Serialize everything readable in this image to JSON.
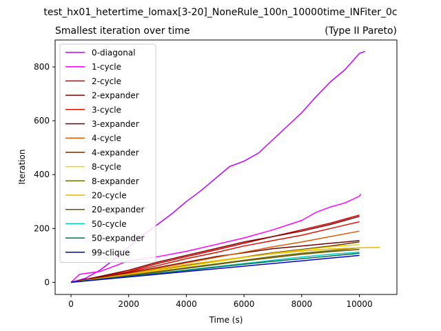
{
  "figure": {
    "suptitle": "test_hx01_hetertime_lomax[3-20]_NoneRule_100n_10000time_INFiter_0c"
  },
  "chart_data": {
    "type": "line",
    "title_left": "Smallest iteration over time",
    "title_right": "(Type II Pareto)",
    "xlabel": "Time (s)",
    "ylabel": "Iteration",
    "xlim": [
      -550,
      11300
    ],
    "ylim": [
      -45,
      900
    ],
    "xticks": [
      0,
      2000,
      4000,
      6000,
      8000,
      10000
    ],
    "yticks": [
      0,
      200,
      400,
      600,
      800
    ],
    "grid": false,
    "legend_position": "upper-left",
    "series": [
      {
        "name": "0-diagonal",
        "color": "#bf00ff",
        "points": [
          [
            0,
            0
          ],
          [
            500,
            15
          ],
          [
            1000,
            45
          ],
          [
            1500,
            85
          ],
          [
            2000,
            130
          ],
          [
            2500,
            175
          ],
          [
            3000,
            215
          ],
          [
            3500,
            255
          ],
          [
            4000,
            300
          ],
          [
            4500,
            340
          ],
          [
            5000,
            385
          ],
          [
            5500,
            430
          ],
          [
            6000,
            450
          ],
          [
            6500,
            480
          ],
          [
            7000,
            530
          ],
          [
            7500,
            580
          ],
          [
            8000,
            630
          ],
          [
            8500,
            690
          ],
          [
            9000,
            745
          ],
          [
            9500,
            790
          ],
          [
            10000,
            850
          ],
          [
            10200,
            858
          ]
        ]
      },
      {
        "name": "1-cycle",
        "color": "#ff00ff",
        "points": [
          [
            0,
            0
          ],
          [
            300,
            30
          ],
          [
            1000,
            40
          ],
          [
            2000,
            80
          ],
          [
            3000,
            95
          ],
          [
            4000,
            115
          ],
          [
            5000,
            140
          ],
          [
            6000,
            165
          ],
          [
            7000,
            195
          ],
          [
            8000,
            230
          ],
          [
            8500,
            260
          ],
          [
            9000,
            280
          ],
          [
            9500,
            295
          ],
          [
            10000,
            320
          ],
          [
            10050,
            328
          ]
        ]
      },
      {
        "name": "2-cycle",
        "color": "#cc0000",
        "points": [
          [
            0,
            0
          ],
          [
            1000,
            20
          ],
          [
            2000,
            40
          ],
          [
            3000,
            70
          ],
          [
            4000,
            95
          ],
          [
            5000,
            120
          ],
          [
            6000,
            145
          ],
          [
            7000,
            170
          ],
          [
            8000,
            195
          ],
          [
            9000,
            220
          ],
          [
            10000,
            250
          ]
        ]
      },
      {
        "name": "2-expander",
        "color": "#800000",
        "points": [
          [
            0,
            0
          ],
          [
            1000,
            22
          ],
          [
            2000,
            45
          ],
          [
            3000,
            75
          ],
          [
            4000,
            100
          ],
          [
            5000,
            125
          ],
          [
            6000,
            150
          ],
          [
            7000,
            170
          ],
          [
            8000,
            190
          ],
          [
            9000,
            215
          ],
          [
            10000,
            245
          ]
        ]
      },
      {
        "name": "3-cycle",
        "color": "#dd1100",
        "points": [
          [
            0,
            0
          ],
          [
            1000,
            18
          ],
          [
            2000,
            38
          ],
          [
            3000,
            62
          ],
          [
            4000,
            88
          ],
          [
            5000,
            110
          ],
          [
            6000,
            135
          ],
          [
            7000,
            155
          ],
          [
            8000,
            175
          ],
          [
            9000,
            200
          ],
          [
            10000,
            225
          ]
        ]
      },
      {
        "name": "3-expander",
        "color": "#700000",
        "points": [
          [
            0,
            0
          ],
          [
            1000,
            18
          ],
          [
            2000,
            35
          ],
          [
            3000,
            55
          ],
          [
            4000,
            75
          ],
          [
            5000,
            95
          ],
          [
            6000,
            110
          ],
          [
            7000,
            125
          ],
          [
            8000,
            135
          ],
          [
            9000,
            145
          ],
          [
            10000,
            155
          ]
        ]
      },
      {
        "name": "4-cycle",
        "color": "#e05a00",
        "points": [
          [
            0,
            0
          ],
          [
            1000,
            16
          ],
          [
            2000,
            32
          ],
          [
            3000,
            52
          ],
          [
            4000,
            72
          ],
          [
            5000,
            92
          ],
          [
            6000,
            112
          ],
          [
            7000,
            132
          ],
          [
            8000,
            150
          ],
          [
            9000,
            170
          ],
          [
            10000,
            190
          ]
        ]
      },
      {
        "name": "4-expander",
        "color": "#6b2a00",
        "points": [
          [
            0,
            0
          ],
          [
            1000,
            15
          ],
          [
            2000,
            30
          ],
          [
            3000,
            46
          ],
          [
            4000,
            62
          ],
          [
            5000,
            78
          ],
          [
            6000,
            94
          ],
          [
            7000,
            110
          ],
          [
            8000,
            122
          ],
          [
            9000,
            135
          ],
          [
            10000,
            150
          ]
        ]
      },
      {
        "name": "8-cycle",
        "color": "#e6d800",
        "points": [
          [
            0,
            0
          ],
          [
            1000,
            14
          ],
          [
            2000,
            28
          ],
          [
            3000,
            44
          ],
          [
            4000,
            60
          ],
          [
            5000,
            76
          ],
          [
            6000,
            92
          ],
          [
            7000,
            108
          ],
          [
            8000,
            120
          ],
          [
            9000,
            132
          ],
          [
            10000,
            140
          ]
        ]
      },
      {
        "name": "8-expander",
        "color": "#707000",
        "points": [
          [
            0,
            0
          ],
          [
            1000,
            13
          ],
          [
            2000,
            26
          ],
          [
            3000,
            40
          ],
          [
            4000,
            54
          ],
          [
            5000,
            68
          ],
          [
            6000,
            82
          ],
          [
            7000,
            96
          ],
          [
            8000,
            108
          ],
          [
            9000,
            118
          ],
          [
            10000,
            128
          ]
        ]
      },
      {
        "name": "20-cycle",
        "color": "#e6b800",
        "points": [
          [
            0,
            0
          ],
          [
            1000,
            14
          ],
          [
            2000,
            30
          ],
          [
            3000,
            48
          ],
          [
            4000,
            66
          ],
          [
            5000,
            80
          ],
          [
            6000,
            94
          ],
          [
            7000,
            106
          ],
          [
            8000,
            116
          ],
          [
            9000,
            124
          ],
          [
            10000,
            128
          ],
          [
            10700,
            130
          ]
        ]
      },
      {
        "name": "20-expander",
        "color": "#6b5000",
        "points": [
          [
            0,
            0
          ],
          [
            1000,
            12
          ],
          [
            2000,
            25
          ],
          [
            3000,
            38
          ],
          [
            4000,
            52
          ],
          [
            5000,
            66
          ],
          [
            6000,
            80
          ],
          [
            7000,
            92
          ],
          [
            8000,
            104
          ],
          [
            9000,
            114
          ],
          [
            10000,
            122
          ]
        ]
      },
      {
        "name": "50-cycle",
        "color": "#00ccbb",
        "points": [
          [
            0,
            0
          ],
          [
            1000,
            11
          ],
          [
            2000,
            22
          ],
          [
            3000,
            34
          ],
          [
            4000,
            46
          ],
          [
            5000,
            58
          ],
          [
            6000,
            70
          ],
          [
            7000,
            82
          ],
          [
            8000,
            94
          ],
          [
            9000,
            104
          ],
          [
            10000,
            112
          ]
        ]
      },
      {
        "name": "50-expander",
        "color": "#007050",
        "points": [
          [
            0,
            0
          ],
          [
            1000,
            11
          ],
          [
            2000,
            22
          ],
          [
            3000,
            33
          ],
          [
            4000,
            44
          ],
          [
            5000,
            56
          ],
          [
            6000,
            67
          ],
          [
            7000,
            78
          ],
          [
            8000,
            88
          ],
          [
            9000,
            98
          ],
          [
            10000,
            108
          ]
        ]
      },
      {
        "name": "99-clique",
        "color": "#0000cc",
        "points": [
          [
            0,
            0
          ],
          [
            1000,
            10
          ],
          [
            2000,
            20
          ],
          [
            3000,
            30
          ],
          [
            4000,
            40
          ],
          [
            5000,
            50
          ],
          [
            6000,
            60
          ],
          [
            7000,
            70
          ],
          [
            8000,
            80
          ],
          [
            9000,
            90
          ],
          [
            10000,
            100
          ]
        ]
      }
    ]
  }
}
